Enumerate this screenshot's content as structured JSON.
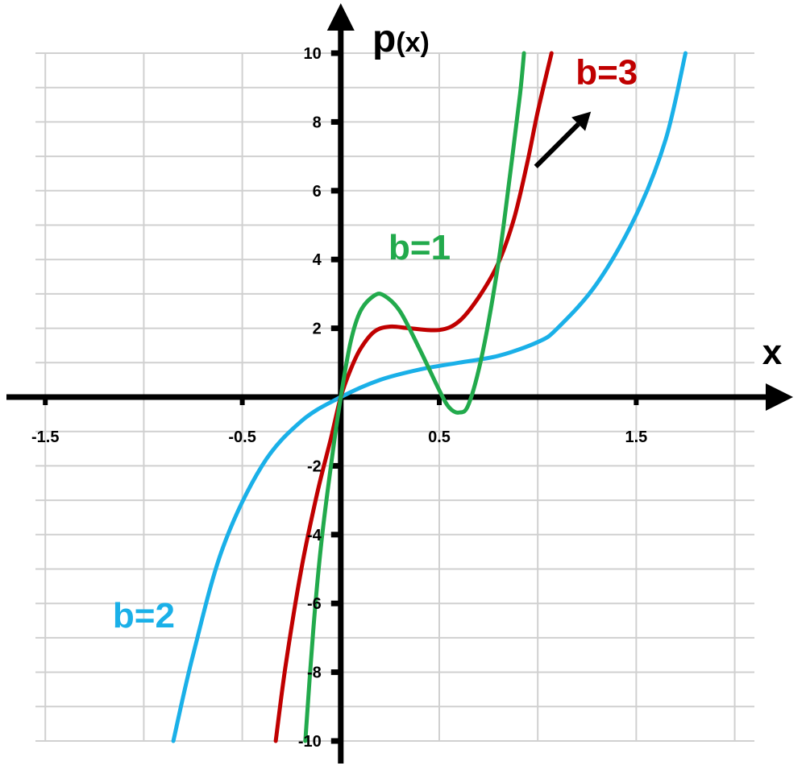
{
  "chart_data": {
    "type": "line",
    "xlabel": "x",
    "ylabel_main": "p",
    "ylabel_sub": "(x)",
    "xlim": [
      -1.55,
      2.1
    ],
    "ylim": [
      -10,
      10
    ],
    "x_grid_step": 0.5,
    "y_grid_step": 1,
    "x_ticks": [
      {
        "value": -1.5,
        "label": "-1.5"
      },
      {
        "value": -0.5,
        "label": "-0.5"
      },
      {
        "value": 0.5,
        "label": "0.5"
      },
      {
        "value": 1.5,
        "label": "1.5"
      }
    ],
    "y_ticks": [
      {
        "value": 10,
        "label": "10"
      },
      {
        "value": 8,
        "label": "8"
      },
      {
        "value": 6,
        "label": "6"
      },
      {
        "value": 4,
        "label": "4"
      },
      {
        "value": 2,
        "label": "2"
      },
      {
        "value": -2,
        "label": "-2"
      },
      {
        "value": -4,
        "label": "-4"
      },
      {
        "value": -6,
        "label": "-6"
      },
      {
        "value": -8,
        "label": "-8"
      },
      {
        "value": -10,
        "label": "-10"
      }
    ],
    "grid": true,
    "series": [
      {
        "name": "b=2",
        "color": "#1ab0e8",
        "points": [
          [
            -0.85,
            -10
          ],
          [
            -0.75,
            -7.5
          ],
          [
            -0.6,
            -4.4
          ],
          [
            -0.4,
            -2.0
          ],
          [
            -0.2,
            -0.7
          ],
          [
            0,
            0
          ],
          [
            0.2,
            0.5
          ],
          [
            0.4,
            0.8
          ],
          [
            0.6,
            1.0
          ],
          [
            0.8,
            1.2
          ],
          [
            1.0,
            1.6
          ],
          [
            1.1,
            2.0
          ],
          [
            1.3,
            3.3
          ],
          [
            1.5,
            5.3
          ],
          [
            1.65,
            7.5
          ],
          [
            1.75,
            10
          ]
        ]
      },
      {
        "name": "b=3",
        "color": "#c00000",
        "points": [
          [
            -0.33,
            -10
          ],
          [
            -0.28,
            -7.8
          ],
          [
            -0.2,
            -5.0
          ],
          [
            -0.12,
            -2.8
          ],
          [
            -0.05,
            -1.2
          ],
          [
            0,
            0
          ],
          [
            0.05,
            0.8
          ],
          [
            0.1,
            1.4
          ],
          [
            0.17,
            1.9
          ],
          [
            0.25,
            2.05
          ],
          [
            0.35,
            2.0
          ],
          [
            0.5,
            1.95
          ],
          [
            0.6,
            2.2
          ],
          [
            0.7,
            2.9
          ],
          [
            0.8,
            3.9
          ],
          [
            0.88,
            5.2
          ],
          [
            0.95,
            6.9
          ],
          [
            1.0,
            8.3
          ],
          [
            1.07,
            10
          ]
        ]
      },
      {
        "name": "b=1",
        "color": "#22aa4c",
        "points": [
          [
            -0.18,
            -10
          ],
          [
            -0.14,
            -6.8
          ],
          [
            -0.1,
            -4.3
          ],
          [
            -0.05,
            -2.0
          ],
          [
            0,
            0
          ],
          [
            0.05,
            1.6
          ],
          [
            0.1,
            2.5
          ],
          [
            0.17,
            2.95
          ],
          [
            0.22,
            2.95
          ],
          [
            0.3,
            2.5
          ],
          [
            0.4,
            1.4
          ],
          [
            0.5,
            0.2
          ],
          [
            0.55,
            -0.3
          ],
          [
            0.6,
            -0.45
          ],
          [
            0.65,
            -0.2
          ],
          [
            0.72,
            1.3
          ],
          [
            0.8,
            3.9
          ],
          [
            0.86,
            6.5
          ],
          [
            0.91,
            8.8
          ],
          [
            0.93,
            10
          ]
        ]
      }
    ],
    "annotations": [
      {
        "text": "b=3",
        "color": "#c00000",
        "x": 1.35,
        "y": 9.1
      },
      {
        "text": "b=1",
        "color": "#22aa4c",
        "x": 0.4,
        "y": 4.0
      },
      {
        "text": "b=2",
        "color": "#1ab0e8",
        "x": -1.0,
        "y": -6.7
      }
    ],
    "arrow": {
      "from": [
        0.99,
        6.7
      ],
      "to": [
        1.27,
        8.3
      ]
    }
  }
}
